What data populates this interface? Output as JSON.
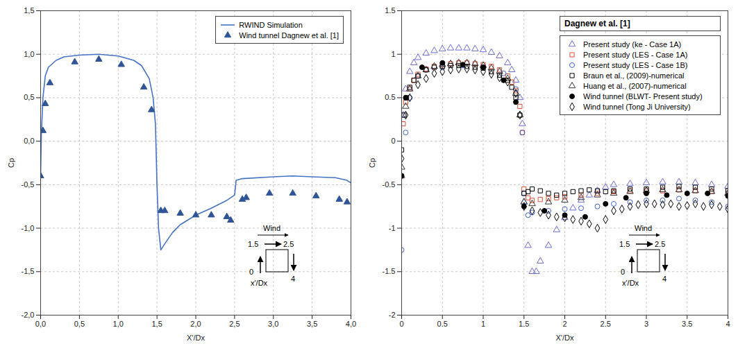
{
  "chart_data": [
    {
      "type": "line",
      "x_label": "X'/Dx",
      "y_label": "Cp",
      "xlim": [
        0,
        4
      ],
      "xticks": [
        {
          "value": 0,
          "label": "0,0"
        },
        {
          "value": 0.5,
          "label": "0,5"
        },
        {
          "value": 1,
          "label": "1,0"
        },
        {
          "value": 1.5,
          "label": "1,5"
        },
        {
          "value": 2,
          "label": "2,0"
        },
        {
          "value": 2.5,
          "label": "2,5"
        },
        {
          "value": 3,
          "label": "3,0"
        },
        {
          "value": 3.5,
          "label": "3,5"
        },
        {
          "value": 4,
          "label": "4,0"
        }
      ],
      "ylim": [
        -2,
        1.5
      ],
      "yticks": [
        {
          "value": -2,
          "label": "-2,0"
        },
        {
          "value": -1.5,
          "label": "-1,5"
        },
        {
          "value": -1,
          "label": "-1,0"
        },
        {
          "value": -0.5,
          "label": "-0,5"
        },
        {
          "value": 0,
          "label": "0,0"
        },
        {
          "value": 0.5,
          "label": "0,5"
        },
        {
          "value": 1,
          "label": "1,0"
        },
        {
          "value": 1.5,
          "label": "1,5"
        }
      ],
      "grid": true,
      "legend": "top-right",
      "annotations": [
        "Wind",
        "1.5",
        "2.5",
        "0",
        "4",
        "x'/Dx"
      ],
      "series": [
        {
          "name": "RWIND Simulation",
          "type": "line",
          "color": "#4472c4",
          "line_style": "solid",
          "x": [
            0,
            0.01,
            0.03,
            0.06,
            0.1,
            0.2,
            0.3,
            0.5,
            0.75,
            1.0,
            1.2,
            1.3,
            1.4,
            1.45,
            1.48,
            1.5,
            1.52,
            1.55,
            1.6,
            1.7,
            1.8,
            2.0,
            2.2,
            2.4,
            2.5,
            2.52,
            2.6,
            3.0,
            3.25,
            3.5,
            3.8,
            3.95,
            4.0
          ],
          "values": [
            -0.4,
            0.1,
            0.5,
            0.75,
            0.85,
            0.93,
            0.97,
            0.99,
            1.0,
            0.98,
            0.93,
            0.87,
            0.72,
            0.5,
            0.2,
            -0.5,
            -1.0,
            -1.25,
            -1.18,
            -1.05,
            -0.96,
            -0.85,
            -0.77,
            -0.68,
            -0.62,
            -0.45,
            -0.43,
            -0.41,
            -0.4,
            -0.41,
            -0.42,
            -0.45,
            -0.48
          ]
        },
        {
          "name": "Wind tunnel Dagnew et al. [1]",
          "type": "scatter",
          "color": "#2f5597",
          "marker": "triangle",
          "x": [
            0,
            0.03,
            0.06,
            0.12,
            0.44,
            0.75,
            1.04,
            1.33,
            1.43,
            1.55,
            1.6,
            1.8,
            2.0,
            2.2,
            2.4,
            2.45,
            2.6,
            2.65,
            2.95,
            3.25,
            3.55,
            3.85,
            3.95
          ],
          "values": [
            -0.4,
            0.12,
            0.43,
            0.67,
            0.91,
            0.94,
            0.88,
            0.62,
            0.36,
            -0.8,
            -0.8,
            -0.83,
            -0.85,
            -0.85,
            -0.87,
            -0.91,
            -0.67,
            -0.65,
            -0.6,
            -0.6,
            -0.63,
            -0.67,
            -0.7
          ]
        }
      ]
    },
    {
      "type": "scatter",
      "title": "Dagnew et al. [1]",
      "x_label": "X'/Dx",
      "y_label": "Cp",
      "xlim": [
        0,
        4
      ],
      "xticks": [
        0,
        0.5,
        1,
        1.5,
        2,
        2.5,
        3,
        3.5,
        4
      ],
      "ylim": [
        -2,
        1.5
      ],
      "yticks": [
        -2,
        -1.5,
        -1,
        -0.5,
        0,
        0.5,
        1,
        1.5
      ],
      "grid": true,
      "legend": "top-right",
      "annotations": [
        "Wind",
        "1.5",
        "2.5",
        "0",
        "4",
        "x'/Dx"
      ],
      "series": [
        {
          "name": "Present study (ke - Case 1A)",
          "color": "#6b6bd6",
          "marker": "triangle-open",
          "x": [
            0,
            0.02,
            0.05,
            0.1,
            0.15,
            0.2,
            0.3,
            0.4,
            0.5,
            0.6,
            0.7,
            0.8,
            0.9,
            1.0,
            1.1,
            1.2,
            1.3,
            1.35,
            1.4,
            1.45,
            1.48,
            1.5,
            1.55,
            1.6,
            1.65,
            1.7,
            1.8,
            1.9,
            2.0,
            2.1,
            2.2,
            2.3,
            2.4,
            2.5,
            2.6,
            2.8,
            3.0,
            3.2,
            3.4,
            3.6,
            3.8,
            4.0
          ],
          "values": [
            -0.4,
            0.3,
            0.6,
            0.8,
            0.9,
            0.96,
            1.01,
            1.04,
            1.06,
            1.07,
            1.07,
            1.07,
            1.06,
            1.05,
            1.02,
            0.98,
            0.9,
            0.82,
            0.7,
            0.5,
            0.2,
            -0.7,
            -1.2,
            -1.5,
            -1.5,
            -1.38,
            -1.2,
            -1.02,
            -0.88,
            -0.77,
            -0.68,
            -0.62,
            -0.57,
            -0.53,
            -0.5,
            -0.49,
            -0.48,
            -0.47,
            -0.47,
            -0.48,
            -0.5,
            -0.52
          ]
        },
        {
          "name": "Present study (LES - Case 1A)",
          "color": "#e34a33",
          "marker": "square-open",
          "x": [
            0,
            0.02,
            0.05,
            0.1,
            0.15,
            0.2,
            0.3,
            0.4,
            0.5,
            0.6,
            0.7,
            0.8,
            0.9,
            1.0,
            1.1,
            1.2,
            1.3,
            1.35,
            1.4,
            1.45,
            1.48,
            1.5,
            1.55,
            1.6,
            1.7,
            1.8,
            1.9,
            2.0,
            2.2,
            2.4,
            2.6,
            2.8,
            3.0,
            3.2,
            3.4,
            3.6,
            3.8,
            4.0
          ],
          "values": [
            -0.4,
            0.2,
            0.45,
            0.6,
            0.7,
            0.77,
            0.83,
            0.86,
            0.88,
            0.89,
            0.9,
            0.9,
            0.89,
            0.88,
            0.86,
            0.82,
            0.75,
            0.68,
            0.58,
            0.4,
            0.1,
            -0.55,
            -0.65,
            -0.68,
            -0.67,
            -0.66,
            -0.65,
            -0.64,
            -0.62,
            -0.6,
            -0.58,
            -0.57,
            -0.57,
            -0.57,
            -0.56,
            -0.57,
            -0.58,
            -0.6
          ]
        },
        {
          "name": "Present study (LES - Case 1B)",
          "color": "#3f5fd0",
          "marker": "circle-open",
          "x": [
            0,
            0.05,
            0.1,
            0.2,
            0.3,
            0.5,
            0.75,
            1.0,
            1.25,
            1.4,
            1.48,
            1.5,
            1.55,
            1.6,
            1.8,
            2.0,
            2.2,
            2.4,
            2.6,
            2.8,
            3.0,
            3.2,
            3.4,
            3.6,
            3.8,
            4.0
          ],
          "values": [
            -1.25,
            0.1,
            0.5,
            0.75,
            0.82,
            0.85,
            0.87,
            0.85,
            0.78,
            0.6,
            0.1,
            -0.6,
            -0.85,
            -0.82,
            -0.8,
            -0.78,
            -0.77,
            -0.75,
            -0.72,
            -0.7,
            -0.68,
            -0.68,
            -0.66,
            -0.68,
            -0.7,
            -0.75
          ]
        },
        {
          "name": "Braun et al., (2009)-numerical",
          "color": "#000000",
          "marker": "square-open",
          "x": [
            0,
            0.03,
            0.06,
            0.1,
            0.15,
            0.2,
            0.3,
            0.4,
            0.5,
            0.6,
            0.7,
            0.8,
            0.9,
            1.0,
            1.1,
            1.2,
            1.3,
            1.35,
            1.4,
            1.45,
            1.5,
            1.55,
            1.6,
            1.7,
            1.8,
            1.9,
            2.0,
            2.1,
            2.2,
            2.3,
            2.4,
            2.5,
            2.6,
            2.8,
            3.0,
            3.2,
            3.4,
            3.6,
            3.8,
            4.0
          ],
          "values": [
            -0.1,
            0.3,
            0.5,
            0.62,
            0.7,
            0.75,
            0.82,
            0.85,
            0.86,
            0.87,
            0.87,
            0.86,
            0.85,
            0.84,
            0.8,
            0.76,
            0.7,
            0.62,
            0.5,
            0.3,
            -0.6,
            -0.58,
            -0.55,
            -0.57,
            -0.6,
            -0.62,
            -0.6,
            -0.58,
            -0.57,
            -0.56,
            -0.57,
            -0.58,
            -0.57,
            -0.55,
            -0.55,
            -0.53,
            -0.52,
            -0.53,
            -0.55,
            -0.57
          ]
        },
        {
          "name": "Huang et al., (2007)-numerical",
          "color": "#333333",
          "marker": "triangle-open",
          "x": [
            0,
            0.05,
            0.1,
            0.2,
            0.3,
            0.4,
            0.5,
            0.6,
            0.7,
            0.8,
            0.9,
            1.0,
            1.1,
            1.2,
            1.3,
            1.4,
            1.45,
            1.5,
            1.6,
            1.8,
            2.0,
            2.2,
            2.4,
            2.6,
            2.8,
            3.0,
            3.2,
            3.4,
            3.6,
            3.8,
            4.0
          ],
          "values": [
            -0.3,
            0.4,
            0.6,
            0.75,
            0.82,
            0.86,
            0.88,
            0.89,
            0.9,
            0.9,
            0.89,
            0.87,
            0.84,
            0.8,
            0.72,
            0.55,
            0.3,
            -0.7,
            -0.72,
            -0.7,
            -0.68,
            -0.65,
            -0.62,
            -0.6,
            -0.58,
            -0.57,
            -0.56,
            -0.56,
            -0.57,
            -0.58,
            -0.6
          ]
        },
        {
          "name": "Wind tunnel (BLWT- Present study)",
          "color": "#000000",
          "marker": "circle",
          "x": [
            0,
            0.05,
            0.25,
            0.5,
            0.75,
            1.0,
            1.25,
            1.4,
            1.5,
            1.75,
            2.0,
            2.25,
            2.5,
            2.75,
            3.0,
            3.25,
            3.5,
            3.75,
            4.0
          ],
          "values": [
            -0.4,
            0.5,
            0.85,
            0.9,
            0.88,
            0.85,
            0.7,
            0.45,
            -0.75,
            -0.8,
            -0.85,
            -0.87,
            -0.72,
            -0.65,
            -0.6,
            -0.62,
            -0.6,
            -0.6,
            -0.63
          ]
        },
        {
          "name": "Wind tunnel (Tong Ji University)",
          "color": "#000000",
          "marker": "diamond-open",
          "x": [
            0,
            0.05,
            0.1,
            0.2,
            0.3,
            0.4,
            0.5,
            0.6,
            0.7,
            0.8,
            0.9,
            1.0,
            1.1,
            1.2,
            1.3,
            1.4,
            1.45,
            1.5,
            1.6,
            1.7,
            1.8,
            1.9,
            2.0,
            2.1,
            2.2,
            2.3,
            2.4,
            2.5,
            2.6,
            2.7,
            2.8,
            2.9,
            3.0,
            3.1,
            3.2,
            3.3,
            3.4,
            3.5,
            3.6,
            3.7,
            3.8,
            3.9,
            4.0
          ],
          "values": [
            -0.2,
            0.3,
            0.5,
            0.65,
            0.72,
            0.78,
            0.8,
            0.82,
            0.83,
            0.83,
            0.82,
            0.8,
            0.77,
            0.73,
            0.68,
            0.55,
            0.3,
            -0.75,
            -0.8,
            -0.82,
            -0.85,
            -0.87,
            -0.88,
            -0.9,
            -0.92,
            -0.95,
            -1.0,
            -0.9,
            -0.8,
            -0.78,
            -0.75,
            -0.73,
            -0.72,
            -0.72,
            -0.73,
            -0.72,
            -0.75,
            -0.74,
            -0.72,
            -0.75,
            -0.73,
            -0.75,
            -0.78
          ]
        }
      ]
    }
  ]
}
